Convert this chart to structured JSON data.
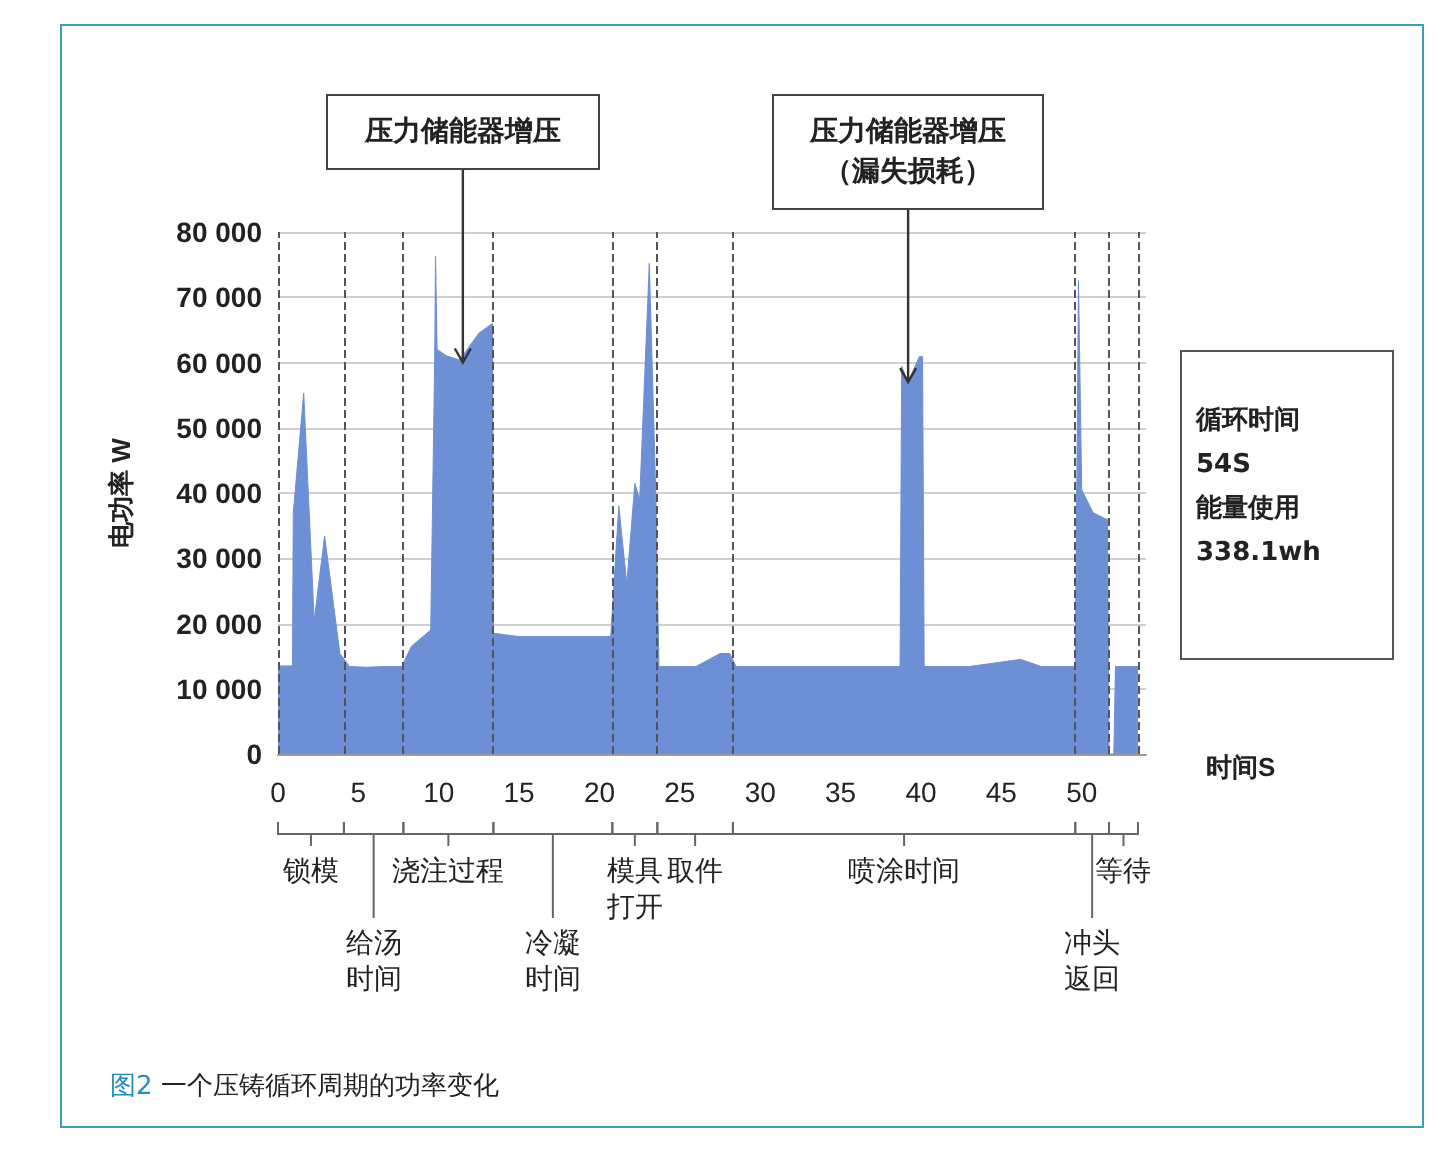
{
  "chart_data": {
    "type": "area",
    "title": "图2 一个压铸循环周期的功率变化",
    "xlabel": "时间S",
    "ylabel": "电功率 W",
    "color": "#6d8fd6",
    "x": [
      0,
      0.9,
      0.95,
      1.6,
      2.25,
      2.9,
      3.85,
      4.45,
      5.5,
      6.5,
      7.7,
      8.3,
      9.5,
      9.75,
      9.8,
      9.9,
      10.5,
      11.3,
      12.5,
      13.35,
      13.4,
      15,
      17,
      19,
      20.7,
      21.2,
      21.7,
      22.2,
      22.5,
      23.1,
      23.5,
      23.7,
      26,
      27.5,
      28.1,
      28.5,
      32,
      36,
      38.7,
      38.8,
      39.2,
      39.9,
      40.1,
      40.2,
      43,
      46.2,
      47.5,
      49.5,
      49.6,
      49.8,
      50.0,
      50.7,
      51.5,
      51.6,
      51.7,
      52.0,
      52.1,
      53.5
    ],
    "values": [
      13500,
      13500,
      36900,
      55300,
      20500,
      33400,
      15400,
      13400,
      13300,
      13400,
      13400,
      16500,
      19000,
      60900,
      76300,
      62000,
      61000,
      60400,
      64500,
      66000,
      18500,
      18000,
      18000,
      18000,
      18000,
      38000,
      26100,
      41500,
      39000,
      75200,
      40000,
      13400,
      13400,
      15400,
      15400,
      13400,
      13400,
      13400,
      13400,
      59400,
      57000,
      60900,
      60900,
      13400,
      13400,
      14500,
      13400,
      13400,
      13400,
      72600,
      40500,
      37000,
      36000,
      36000,
      0,
      0,
      13400,
      13400
    ],
    "xlim": [
      0,
      54
    ],
    "xticks": [
      0,
      5,
      10,
      15,
      20,
      25,
      30,
      35,
      40,
      45,
      50
    ],
    "ylim": [
      0,
      80000
    ],
    "yticks": [
      {
        "value": 0,
        "label": "0"
      },
      {
        "value": 10000,
        "label": "10 000"
      },
      {
        "value": 20000,
        "label": "20 000"
      },
      {
        "value": 30000,
        "label": "30 000"
      },
      {
        "value": 40000,
        "label": "40 000"
      },
      {
        "value": 50000,
        "label": "50 000"
      },
      {
        "value": 60000,
        "label": "60 000"
      },
      {
        "value": 70000,
        "label": "70 000"
      },
      {
        "value": 80000,
        "label": "80 000"
      }
    ],
    "grid": "y",
    "line_style": "solid",
    "ref_lines": [
      {
        "axis": "x",
        "value": 0,
        "line_style": "dashed",
        "color": "#555555"
      },
      {
        "axis": "x",
        "value": 4.1,
        "line_style": "dashed",
        "color": "#555555"
      },
      {
        "axis": "x",
        "value": 7.8,
        "line_style": "dashed",
        "color": "#555555"
      },
      {
        "axis": "x",
        "value": 13.4,
        "line_style": "dashed",
        "color": "#555555"
      },
      {
        "axis": "x",
        "value": 20.8,
        "line_style": "dashed",
        "color": "#555555"
      },
      {
        "axis": "x",
        "value": 23.6,
        "line_style": "dashed",
        "color": "#555555"
      },
      {
        "axis": "x",
        "value": 28.3,
        "line_style": "dashed",
        "color": "#555555"
      },
      {
        "axis": "x",
        "value": 49.6,
        "line_style": "dashed",
        "color": "#555555"
      },
      {
        "axis": "x",
        "value": 51.7,
        "line_style": "dashed",
        "color": "#555555"
      },
      {
        "axis": "x",
        "value": 53.5,
        "line_style": "dashed",
        "color": "#555555"
      }
    ],
    "annotations": [
      {
        "text": "压力储能器增压",
        "x": 11.5,
        "y": 60000
      },
      {
        "text": "压力储能器增压（漏失损耗）",
        "x": 39.2,
        "y": 57000
      },
      "循环时间\n54S\n能量使用\n338.1wh",
      "锁模",
      "给汤时间",
      "浇注过程",
      "冷凝时间",
      "模具打开",
      "取件",
      "喷涂时间",
      "冲头返回",
      "等待"
    ]
  }
}
